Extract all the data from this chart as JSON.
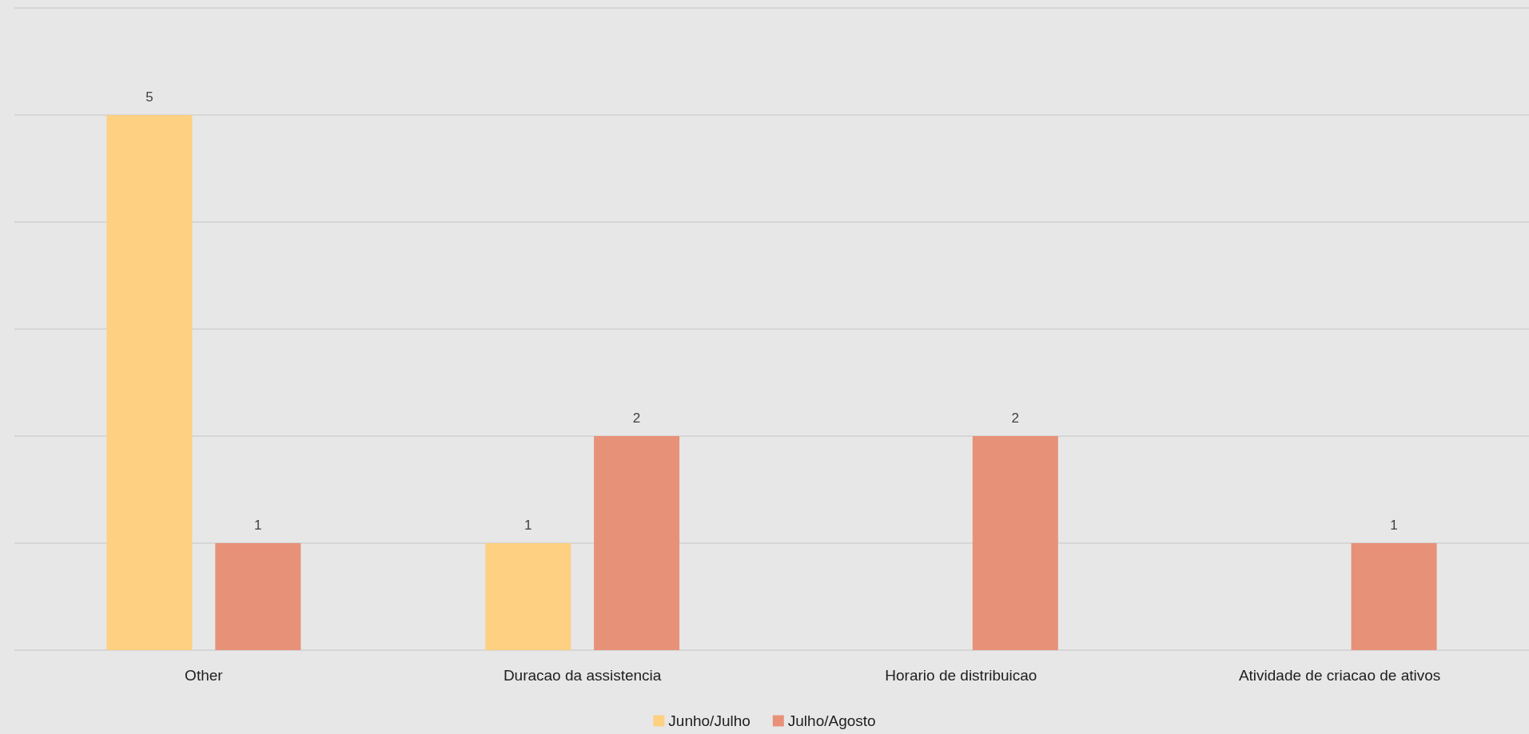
{
  "chart_data": {
    "type": "bar",
    "categories": [
      "Other",
      "Duracao da assistencia",
      "Horario de distribuicao",
      "Atividade de criacao de ativos"
    ],
    "series": [
      {
        "name": "Junho/Julho",
        "color": "#fed081",
        "values": [
          5,
          1,
          null,
          null
        ]
      },
      {
        "name": "Julho/Agosto",
        "color": "#e89179",
        "values": [
          1,
          2,
          2,
          1
        ]
      }
    ],
    "ylim": [
      0,
      6
    ],
    "yticks": [
      {
        "value": 0,
        "label": null
      },
      {
        "value": 1,
        "label": null
      },
      {
        "value": 2,
        "label": null
      },
      {
        "value": 3,
        "label": null
      },
      {
        "value": 4,
        "label": null
      },
      {
        "value": 5,
        "label": null
      },
      {
        "value": 6,
        "label": null
      }
    ],
    "tick_labels": "x",
    "grid": "y",
    "legend": "bottom",
    "data_labels": true
  }
}
